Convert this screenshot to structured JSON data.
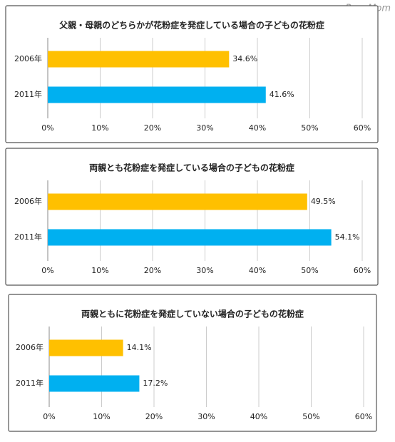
{
  "watermark": "ReseMom",
  "chart_data": [
    {
      "type": "bar",
      "orientation": "horizontal",
      "title": "父親・母親のどちらかが花粉症を発症している場合の子どもの花粉症",
      "categories": [
        "2006年",
        "2011年"
      ],
      "values": [
        34.6,
        41.6
      ],
      "value_labels": [
        "34.6%",
        "41.6%"
      ],
      "colors": [
        "#ffc000",
        "#00b0f0"
      ],
      "xlim": [
        0,
        60
      ],
      "xticks": [
        {
          "value": 0,
          "label": "0%"
        },
        {
          "value": 10,
          "label": "10%"
        },
        {
          "value": 20,
          "label": "20%"
        },
        {
          "value": 30,
          "label": "30%"
        },
        {
          "value": 40,
          "label": "40%"
        },
        {
          "value": 50,
          "label": "50%"
        },
        {
          "value": 60,
          "label": "60%"
        }
      ],
      "grid": true
    },
    {
      "type": "bar",
      "orientation": "horizontal",
      "title": "両親とも花粉症を発症している場合の子どもの花粉症",
      "categories": [
        "2006年",
        "2011年"
      ],
      "values": [
        49.5,
        54.1
      ],
      "value_labels": [
        "49.5%",
        "54.1%"
      ],
      "colors": [
        "#ffc000",
        "#00b0f0"
      ],
      "xlim": [
        0,
        60
      ],
      "xticks": [
        {
          "value": 0,
          "label": "0%"
        },
        {
          "value": 10,
          "label": "10%"
        },
        {
          "value": 20,
          "label": "20%"
        },
        {
          "value": 30,
          "label": "30%"
        },
        {
          "value": 40,
          "label": "40%"
        },
        {
          "value": 50,
          "label": "50%"
        },
        {
          "value": 60,
          "label": "60%"
        }
      ],
      "grid": true
    },
    {
      "type": "bar",
      "orientation": "horizontal",
      "title": "両親ともに花粉症を発症していない場合の子どもの花粉症",
      "categories": [
        "2006年",
        "2011年"
      ],
      "values": [
        14.1,
        17.2
      ],
      "value_labels": [
        "14.1%",
        "17.2%"
      ],
      "colors": [
        "#ffc000",
        "#00b0f0"
      ],
      "xlim": [
        0,
        60
      ],
      "xticks": [
        {
          "value": 0,
          "label": "0%"
        },
        {
          "value": 10,
          "label": "10%"
        },
        {
          "value": 20,
          "label": "20%"
        },
        {
          "value": 30,
          "label": "30%"
        },
        {
          "value": 40,
          "label": "40%"
        },
        {
          "value": 50,
          "label": "50%"
        },
        {
          "value": 60,
          "label": "60%"
        }
      ],
      "grid": true
    }
  ]
}
